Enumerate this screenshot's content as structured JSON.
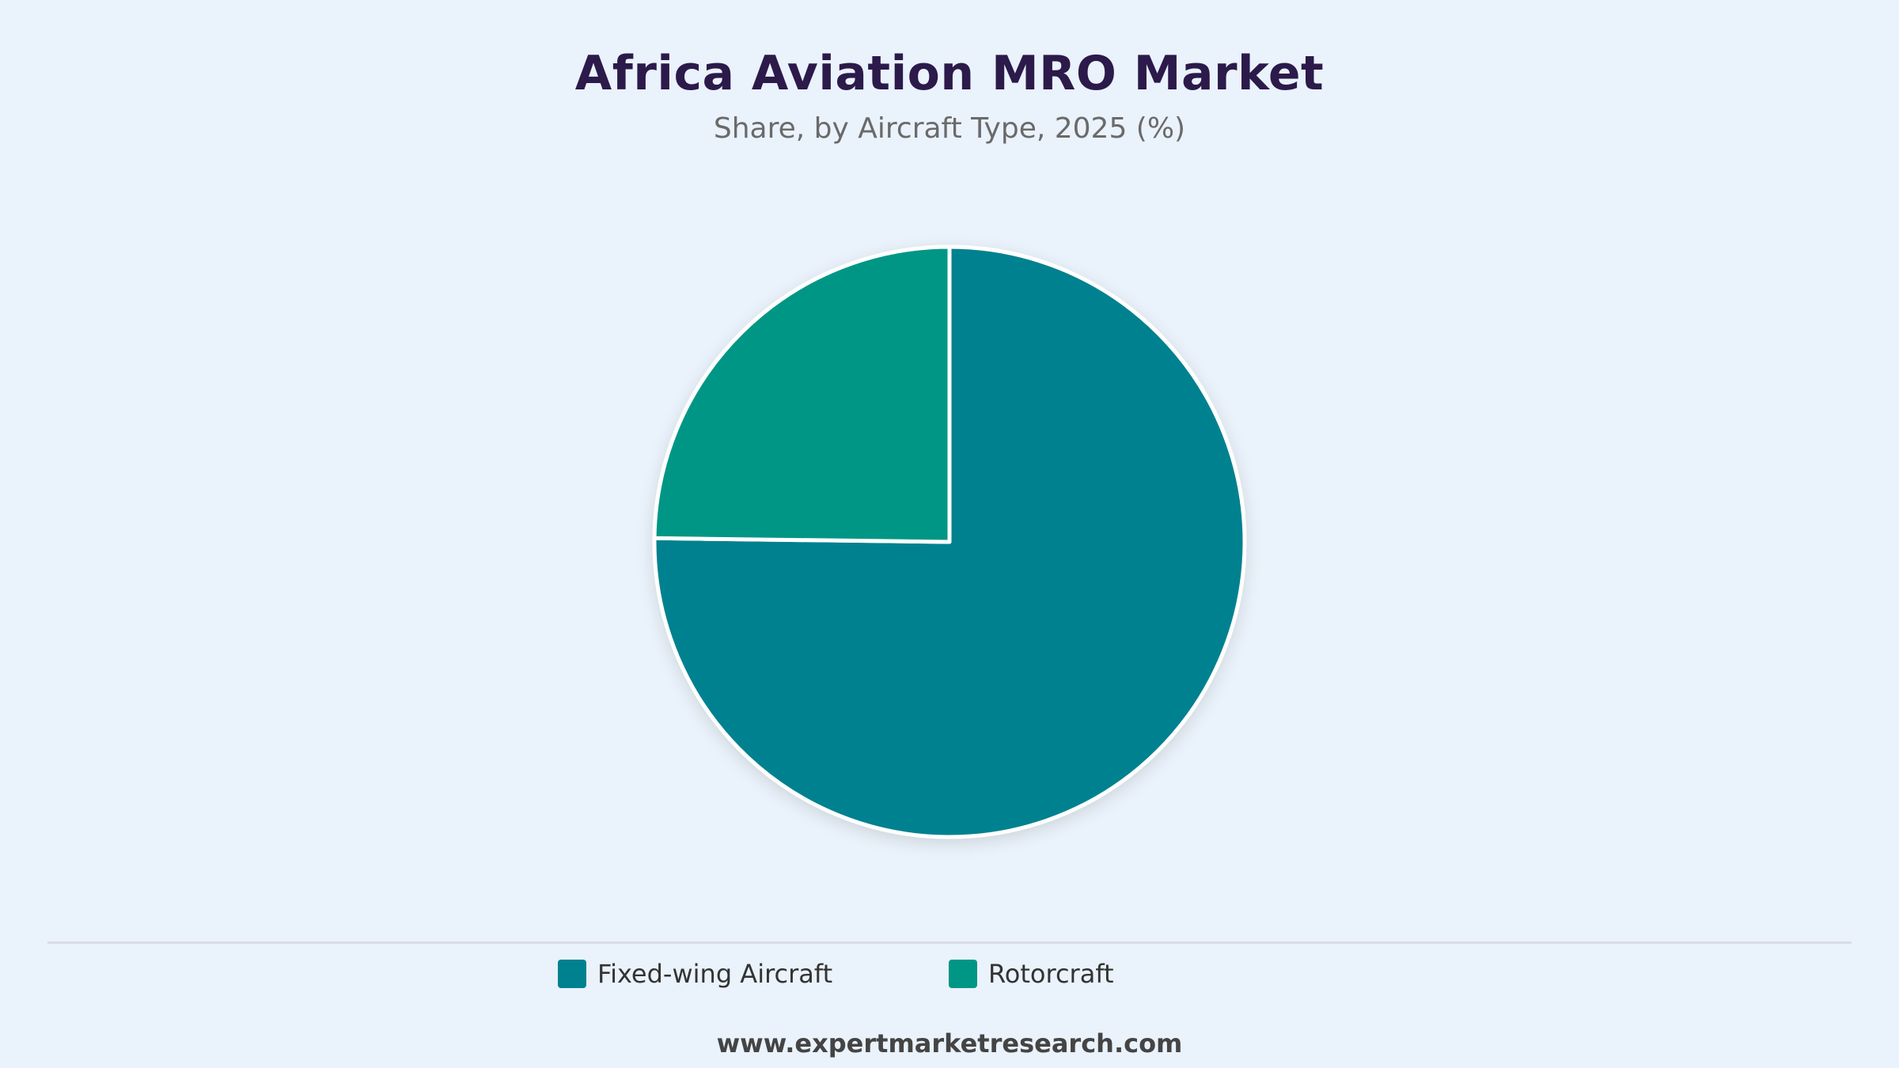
{
  "chart_data": {
    "type": "pie",
    "title": "Africa Aviation MRO Market",
    "subtitle": "Share, by Aircraft Type, 2025 (%)",
    "slices": [
      {
        "label": "Fixed-wing Aircraft",
        "value": 75.2,
        "color": "#00818f"
      },
      {
        "label": "Rotorcraft",
        "value": 24.8,
        "color": "#009685"
      }
    ],
    "start_angle_deg": 0,
    "direction": "clockwise",
    "legend_position": "bottom"
  },
  "footer": {
    "website": "www.expertmarketresearch.com"
  }
}
